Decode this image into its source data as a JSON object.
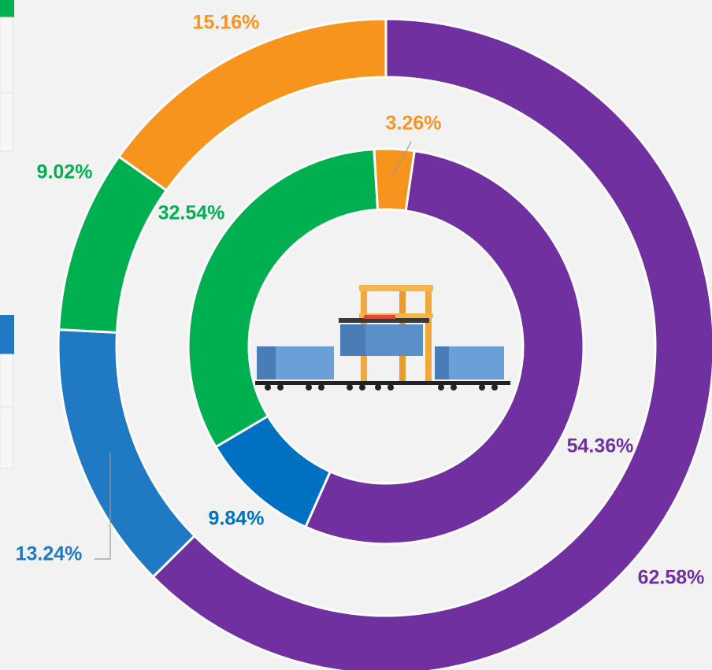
{
  "chart_data": {
    "type": "donut",
    "rings": [
      {
        "values": [
          62.58,
          13.24,
          9.02,
          15.16
        ],
        "value_labels": [
          "62.58%",
          "13.24%",
          "9.02%",
          "15.16%"
        ],
        "colors": [
          "#7030a0",
          "#1f7ac3",
          "#00b050",
          "#f7941d"
        ]
      },
      {
        "values": [
          54.36,
          9.84,
          32.54,
          3.26
        ],
        "value_labels": [
          "54.36%",
          "9.84%",
          "32.54%",
          "3.26%"
        ],
        "colors": [
          "#7030a0",
          "#0070c0",
          "#00b050",
          "#f7941d"
        ]
      }
    ]
  }
}
